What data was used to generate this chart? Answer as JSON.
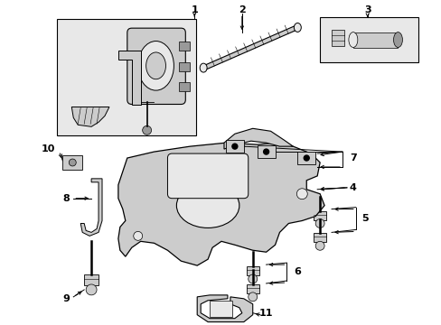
{
  "bg": "#ffffff",
  "lc": "#000000",
  "gray_light": "#e8e8e8",
  "gray_mid": "#cccccc",
  "gray_dark": "#999999",
  "figsize": [
    4.89,
    3.6
  ],
  "dpi": 100
}
